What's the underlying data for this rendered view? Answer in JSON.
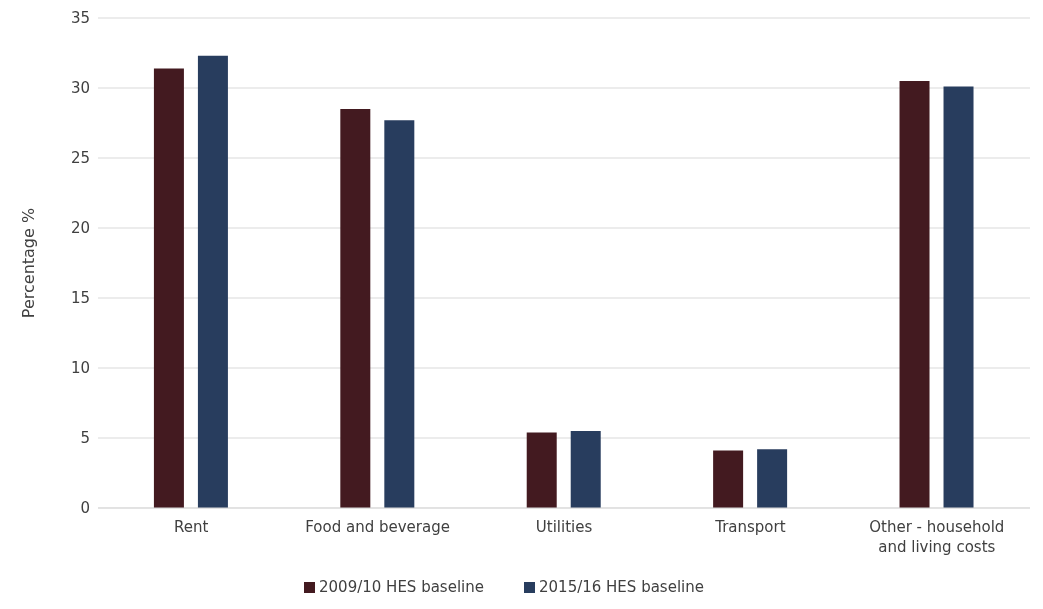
{
  "chart_data": {
    "type": "bar",
    "ylabel": "Percentage %",
    "categories": [
      "Rent",
      "Food and beverage",
      "Utilities",
      "Transport",
      "Other - household and living costs"
    ],
    "series": [
      {
        "name": "2009/10 HES baseline",
        "color": "#431a20",
        "values": [
          31.4,
          28.5,
          5.4,
          4.1,
          30.5
        ]
      },
      {
        "name": "2015/16 HES baseline",
        "color": "#283d5e",
        "values": [
          32.3,
          27.7,
          5.5,
          4.2,
          30.1
        ]
      }
    ],
    "ylim": [
      0,
      35
    ],
    "yticks": [
      0,
      5,
      10,
      15,
      20,
      25,
      30,
      35
    ],
    "grid": "y",
    "legend": "bottom"
  }
}
